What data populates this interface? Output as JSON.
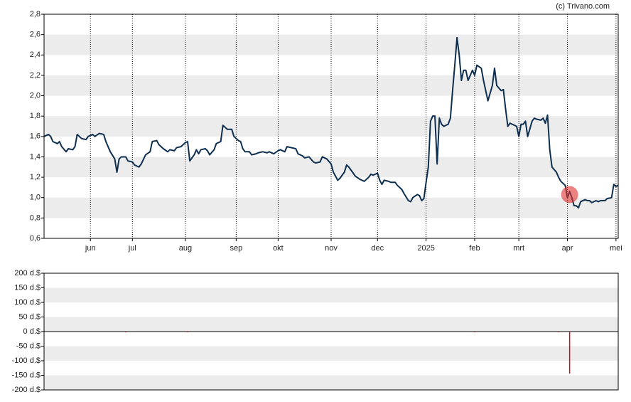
{
  "credit": "(c) Trivano.com",
  "chart_data": [
    {
      "type": "line",
      "color": "#0e2f4f",
      "grid": "bands",
      "xgrid": true,
      "xlim": [
        0,
        260
      ],
      "ylim": [
        0.6,
        2.8
      ],
      "yticks": [
        {
          "value": 0.6,
          "label": "0,6"
        },
        {
          "value": 0.8,
          "label": "0,8"
        },
        {
          "value": 1.0,
          "label": "1,0"
        },
        {
          "value": 1.2,
          "label": "1,2"
        },
        {
          "value": 1.4,
          "label": "1,4"
        },
        {
          "value": 1.6,
          "label": "1,6"
        },
        {
          "value": 1.8,
          "label": "1,8"
        },
        {
          "value": 2.0,
          "label": "2,0"
        },
        {
          "value": 2.2,
          "label": "2,2"
        },
        {
          "value": 2.4,
          "label": "2,4"
        },
        {
          "value": 2.6,
          "label": "2,6"
        },
        {
          "value": 2.8,
          "label": "2,8"
        }
      ],
      "xticks": [
        {
          "value": 21,
          "label": "jun"
        },
        {
          "value": 40,
          "label": "jul"
        },
        {
          "value": 64,
          "label": "aug"
        },
        {
          "value": 87,
          "label": "sep"
        },
        {
          "value": 106,
          "label": "okt"
        },
        {
          "value": 130,
          "label": "nov"
        },
        {
          "value": 151,
          "label": "dec"
        },
        {
          "value": 173,
          "label": "2025"
        },
        {
          "value": 195,
          "label": "feb"
        },
        {
          "value": 215,
          "label": "mrt"
        },
        {
          "value": 237,
          "label": "apr"
        },
        {
          "value": 259,
          "label": "mei"
        }
      ],
      "x": [
        0,
        2,
        3,
        4,
        6,
        7,
        8,
        10,
        11,
        13,
        14,
        15,
        17,
        19,
        20,
        22,
        23,
        25,
        27,
        28,
        30,
        32,
        33,
        34,
        35,
        37,
        38,
        40,
        41,
        43,
        44,
        46,
        48,
        49,
        51,
        52,
        54,
        56,
        57,
        59,
        60,
        62,
        64,
        65,
        66,
        68,
        69,
        70,
        71,
        73,
        74,
        75,
        77,
        78,
        80,
        81,
        83,
        85,
        86,
        88,
        89,
        90,
        91,
        93,
        94,
        96,
        97,
        99,
        101,
        102,
        104,
        106,
        107,
        109,
        110,
        112,
        114,
        115,
        117,
        118,
        120,
        122,
        123,
        125,
        126,
        128,
        130,
        131,
        133,
        134,
        136,
        137,
        138,
        140,
        141,
        143,
        144,
        145,
        147,
        148,
        149,
        151,
        152,
        153,
        154,
        156,
        157,
        159,
        160,
        162,
        163,
        165,
        166,
        167,
        169,
        170,
        171,
        172,
        173,
        174,
        175,
        176,
        177,
        178,
        179,
        180,
        181,
        183,
        184,
        185,
        186,
        187,
        188,
        189,
        190,
        191,
        192,
        194,
        195,
        196,
        198,
        199,
        200,
        201,
        203,
        204,
        205,
        207,
        208,
        209,
        210,
        211,
        212,
        214,
        215,
        216,
        217,
        218,
        219,
        221,
        222,
        223,
        225,
        226,
        227,
        228,
        229,
        230,
        232,
        233,
        234,
        236,
        237,
        238,
        239,
        240,
        241,
        242,
        243,
        245,
        246,
        247,
        248,
        250,
        251,
        252,
        254,
        255,
        257,
        258,
        259,
        260
      ],
      "values": [
        1.6,
        1.62,
        1.6,
        1.55,
        1.53,
        1.55,
        1.5,
        1.45,
        1.48,
        1.47,
        1.5,
        1.62,
        1.58,
        1.57,
        1.6,
        1.62,
        1.6,
        1.63,
        1.62,
        1.55,
        1.45,
        1.38,
        1.25,
        1.38,
        1.4,
        1.4,
        1.36,
        1.35,
        1.32,
        1.3,
        1.33,
        1.42,
        1.45,
        1.55,
        1.56,
        1.52,
        1.48,
        1.45,
        1.47,
        1.46,
        1.49,
        1.5,
        1.54,
        1.55,
        1.36,
        1.42,
        1.47,
        1.43,
        1.47,
        1.48,
        1.46,
        1.42,
        1.47,
        1.53,
        1.55,
        1.71,
        1.67,
        1.67,
        1.6,
        1.56,
        1.55,
        1.48,
        1.45,
        1.45,
        1.42,
        1.43,
        1.44,
        1.45,
        1.44,
        1.45,
        1.43,
        1.46,
        1.47,
        1.45,
        1.5,
        1.49,
        1.48,
        1.43,
        1.41,
        1.39,
        1.4,
        1.35,
        1.34,
        1.35,
        1.4,
        1.38,
        1.33,
        1.25,
        1.17,
        1.19,
        1.25,
        1.32,
        1.3,
        1.24,
        1.21,
        1.18,
        1.17,
        1.16,
        1.2,
        1.23,
        1.22,
        1.24,
        1.17,
        1.13,
        1.17,
        1.16,
        1.15,
        1.15,
        1.12,
        1.08,
        1.04,
        0.97,
        0.96,
        1.0,
        1.03,
        1.02,
        0.97,
        0.99,
        1.15,
        1.3,
        1.75,
        1.8,
        1.8,
        1.33,
        1.78,
        1.72,
        1.7,
        1.72,
        1.78,
        2.05,
        2.3,
        2.57,
        2.4,
        2.15,
        2.25,
        2.25,
        2.15,
        2.25,
        2.2,
        2.3,
        2.27,
        2.15,
        2.05,
        1.95,
        2.1,
        2.27,
        2.1,
        2.05,
        2.06,
        1.87,
        1.7,
        1.73,
        1.72,
        1.7,
        1.6,
        1.72,
        1.72,
        1.75,
        1.6,
        1.75,
        1.78,
        1.77,
        1.76,
        1.78,
        1.73,
        1.81,
        1.47,
        1.3,
        1.25,
        1.2,
        1.16,
        1.12,
        1.0,
        1.06,
        1.0,
        0.92,
        0.92,
        0.9,
        0.96,
        0.98,
        0.97,
        0.97,
        0.95,
        0.97,
        0.96,
        0.97,
        0.97,
        0.99,
        1.0,
        1.13,
        1.11,
        1.12
      ],
      "highlight": {
        "x": 238,
        "y": 1.03,
        "color": "#e03030"
      }
    },
    {
      "type": "bar",
      "color": "#cc1111",
      "grid": "bands",
      "xgrid": false,
      "xlim": [
        0,
        260
      ],
      "ylim": [
        -200,
        200
      ],
      "yticks": [
        {
          "value": -200,
          "label": "-200 d.$"
        },
        {
          "value": -150,
          "label": "-150 d.$"
        },
        {
          "value": -100,
          "label": "-100 d.$"
        },
        {
          "value": -50,
          "label": "-50 d.$"
        },
        {
          "value": 0,
          "label": "0 d.$"
        },
        {
          "value": 50,
          "label": "50 d.$"
        },
        {
          "value": 100,
          "label": "100 d.$"
        },
        {
          "value": 150,
          "label": "150 d.$"
        },
        {
          "value": 200,
          "label": "200 d.$"
        }
      ],
      "x": [
        37,
        65,
        195,
        233,
        238
      ],
      "values": [
        -1,
        -1,
        -1,
        -1,
        -144
      ]
    }
  ]
}
